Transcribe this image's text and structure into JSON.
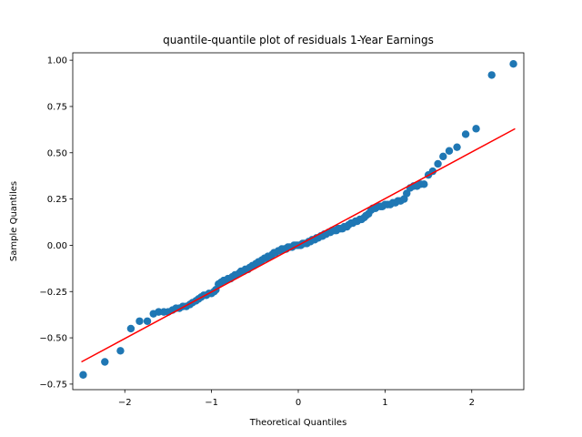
{
  "chart_data": {
    "type": "scatter",
    "title": "quantile-quantile plot of residuals 1-Year Earnings",
    "xlabel": "Theoretical Quantiles",
    "ylabel": "Sample Quantiles",
    "xlim": [
      -2.6,
      2.6
    ],
    "ylim": [
      -0.78,
      1.04
    ],
    "xticks": [
      -2,
      -1,
      0,
      1,
      2
    ],
    "xtick_labels": [
      "−2",
      "−1",
      "0",
      "1",
      "2"
    ],
    "yticks": [
      -0.75,
      -0.5,
      -0.25,
      0.0,
      0.25,
      0.5,
      0.75,
      1.0
    ],
    "ytick_labels": [
      "−0.75",
      "−0.50",
      "−0.25",
      "0.00",
      "0.25",
      "0.50",
      "0.75",
      "1.00"
    ],
    "grid": false,
    "point_color": "#1f77b4",
    "line_color": "#ff0000",
    "reference_line": {
      "x": [
        -2.5,
        2.5
      ],
      "y": [
        -0.63,
        0.63
      ]
    },
    "points": [
      [
        -2.48,
        -0.7
      ],
      [
        -2.23,
        -0.63
      ],
      [
        -2.05,
        -0.57
      ],
      [
        -1.93,
        -0.45
      ],
      [
        -1.83,
        -0.41
      ],
      [
        -1.74,
        -0.41
      ],
      [
        -1.67,
        -0.37
      ],
      [
        -1.61,
        -0.36
      ],
      [
        -1.55,
        -0.36
      ],
      [
        -1.5,
        -0.36
      ],
      [
        -1.45,
        -0.35
      ],
      [
        -1.41,
        -0.34
      ],
      [
        -1.37,
        -0.34
      ],
      [
        -1.33,
        -0.33
      ],
      [
        -1.29,
        -0.33
      ],
      [
        -1.25,
        -0.32
      ],
      [
        -1.22,
        -0.31
      ],
      [
        -1.18,
        -0.3
      ],
      [
        -1.15,
        -0.29
      ],
      [
        -1.12,
        -0.28
      ],
      [
        -1.09,
        -0.27
      ],
      [
        -1.06,
        -0.27
      ],
      [
        -1.03,
        -0.26
      ],
      [
        -1.0,
        -0.26
      ],
      [
        -0.97,
        -0.25
      ],
      [
        -0.95,
        -0.24
      ],
      [
        -0.92,
        -0.21
      ],
      [
        -0.89,
        -0.2
      ],
      [
        -0.86,
        -0.19
      ],
      [
        -0.84,
        -0.19
      ],
      [
        -0.81,
        -0.18
      ],
      [
        -0.78,
        -0.18
      ],
      [
        -0.76,
        -0.17
      ],
      [
        -0.73,
        -0.16
      ],
      [
        -0.71,
        -0.16
      ],
      [
        -0.68,
        -0.15
      ],
      [
        -0.66,
        -0.14
      ],
      [
        -0.63,
        -0.14
      ],
      [
        -0.61,
        -0.13
      ],
      [
        -0.58,
        -0.13
      ],
      [
        -0.56,
        -0.12
      ],
      [
        -0.53,
        -0.11
      ],
      [
        -0.51,
        -0.11
      ],
      [
        -0.49,
        -0.1
      ],
      [
        -0.46,
        -0.09
      ],
      [
        -0.44,
        -0.09
      ],
      [
        -0.42,
        -0.08
      ],
      [
        -0.39,
        -0.07
      ],
      [
        -0.37,
        -0.07
      ],
      [
        -0.35,
        -0.06
      ],
      [
        -0.32,
        -0.06
      ],
      [
        -0.3,
        -0.05
      ],
      [
        -0.28,
        -0.04
      ],
      [
        -0.26,
        -0.04
      ],
      [
        -0.23,
        -0.03
      ],
      [
        -0.21,
        -0.03
      ],
      [
        -0.19,
        -0.02
      ],
      [
        -0.16,
        -0.02
      ],
      [
        -0.14,
        -0.02
      ],
      [
        -0.12,
        -0.01
      ],
      [
        -0.1,
        -0.01
      ],
      [
        -0.07,
        -0.01
      ],
      [
        -0.05,
        0.0
      ],
      [
        -0.03,
        0.0
      ],
      [
        -0.01,
        0.0
      ],
      [
        0.01,
        0.0
      ],
      [
        0.03,
        0.0
      ],
      [
        0.05,
        0.01
      ],
      [
        0.07,
        0.01
      ],
      [
        0.1,
        0.01
      ],
      [
        0.12,
        0.02
      ],
      [
        0.14,
        0.02
      ],
      [
        0.16,
        0.03
      ],
      [
        0.19,
        0.03
      ],
      [
        0.21,
        0.04
      ],
      [
        0.23,
        0.04
      ],
      [
        0.26,
        0.05
      ],
      [
        0.28,
        0.05
      ],
      [
        0.3,
        0.06
      ],
      [
        0.32,
        0.06
      ],
      [
        0.35,
        0.07
      ],
      [
        0.37,
        0.07
      ],
      [
        0.39,
        0.08
      ],
      [
        0.42,
        0.08
      ],
      [
        0.44,
        0.08
      ],
      [
        0.46,
        0.09
      ],
      [
        0.49,
        0.09
      ],
      [
        0.51,
        0.09
      ],
      [
        0.53,
        0.1
      ],
      [
        0.56,
        0.1
      ],
      [
        0.58,
        0.11
      ],
      [
        0.61,
        0.12
      ],
      [
        0.63,
        0.12
      ],
      [
        0.66,
        0.13
      ],
      [
        0.68,
        0.13
      ],
      [
        0.71,
        0.14
      ],
      [
        0.73,
        0.14
      ],
      [
        0.76,
        0.15
      ],
      [
        0.78,
        0.16
      ],
      [
        0.81,
        0.17
      ],
      [
        0.84,
        0.19
      ],
      [
        0.86,
        0.2
      ],
      [
        0.89,
        0.2
      ],
      [
        0.92,
        0.21
      ],
      [
        0.95,
        0.21
      ],
      [
        0.97,
        0.21
      ],
      [
        1.0,
        0.22
      ],
      [
        1.03,
        0.22
      ],
      [
        1.06,
        0.22
      ],
      [
        1.09,
        0.23
      ],
      [
        1.12,
        0.23
      ],
      [
        1.15,
        0.24
      ],
      [
        1.18,
        0.24
      ],
      [
        1.22,
        0.25
      ],
      [
        1.25,
        0.28
      ],
      [
        1.29,
        0.31
      ],
      [
        1.33,
        0.32
      ],
      [
        1.37,
        0.32
      ],
      [
        1.41,
        0.33
      ],
      [
        1.45,
        0.33
      ],
      [
        1.5,
        0.38
      ],
      [
        1.55,
        0.4
      ],
      [
        1.61,
        0.44
      ],
      [
        1.67,
        0.48
      ],
      [
        1.74,
        0.51
      ],
      [
        1.83,
        0.53
      ],
      [
        1.93,
        0.6
      ],
      [
        2.05,
        0.63
      ],
      [
        2.23,
        0.92
      ],
      [
        2.48,
        0.98
      ]
    ]
  }
}
